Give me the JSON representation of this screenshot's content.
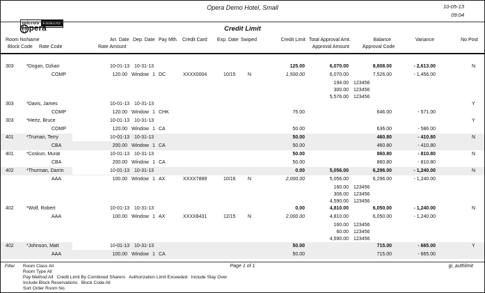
{
  "page": {
    "logo_micros": "micros",
    "logo_fidelio": "FIDELIO",
    "logo_opera": "pera",
    "title": "Opera Demo Hotel, Small",
    "subtitle": "Credit Limit",
    "date": "10-05-13",
    "time": "09:04"
  },
  "header": {
    "room_no": "Room No.",
    "name": "Name",
    "arr_date": "Arr. Date",
    "dep_date": "Dep. Date",
    "pay_mth": "Pay Mth.",
    "credit_card": "Credit Card",
    "exp_date": "Exp. Date",
    "swiped": "Swiped",
    "credit_limit": "Credit Limit",
    "total_approval": "Total Approval Amt.",
    "balance": "Balance",
    "variance": "Variance",
    "no_post": "No Post",
    "block_code": "Block Code",
    "rate_code": "Rate Code",
    "rate_amount": "Rate Amount",
    "approval_amount": "Approval Amount",
    "approval_code": "Approval Code"
  },
  "table_labels": {
    "window": "Window",
    "window_num": "1"
  },
  "guests": [
    {
      "room": "303",
      "name": "*Dogan, Ozkan",
      "arr": "10-01-13",
      "dep": "10-31-13",
      "shade_main": false,
      "shade_sub": false,
      "redact": false,
      "main": {
        "credit_limit": "125.00",
        "total_approval": "6,070.00",
        "balance": "8,808.00",
        "variance": "- 2,613.00",
        "no_post": "N"
      },
      "sub": {
        "rate_code": "COMP",
        "rate_amount": "120.00",
        "pay": "DC",
        "card": "XXXX0004",
        "exp": "10/15",
        "swiped": "N",
        "credit_limit": "1,500.00",
        "credit_limit_italic": true,
        "approval": "6,070.00",
        "balance": "7,526.00",
        "variance": "- 1,456.00"
      },
      "details": [
        {
          "amount": "194.00",
          "code": "123456"
        },
        {
          "amount": "300.00",
          "code": "123456"
        },
        {
          "amount": "5,576.00",
          "code": "123456"
        }
      ]
    },
    {
      "room": "303",
      "name": "*Davis, James",
      "arr": "10-01-13",
      "dep": "10-31-13",
      "shade_main": false,
      "shade_sub": false,
      "redact": false,
      "main": {
        "no_post": "Y"
      },
      "sub": {
        "rate_code": "COMP",
        "rate_amount": "120.00",
        "pay": "CHK",
        "credit_limit": "75.00",
        "credit_limit_italic": false,
        "balance": "646.00",
        "variance": "- 571.00"
      },
      "details": []
    },
    {
      "room": "303",
      "name": "*Hertz, Bruce",
      "arr": "10-01-13",
      "dep": "10-31-13",
      "shade_main": false,
      "shade_sub": false,
      "redact": false,
      "main": {
        "no_post": "Y"
      },
      "sub": {
        "rate_code": "COMP",
        "rate_amount": "120.00",
        "pay": "CA",
        "credit_limit": "50.00",
        "credit_limit_italic": false,
        "balance": "636.00",
        "variance": "- 586.00"
      },
      "details": []
    },
    {
      "room": "401",
      "name": "*Truman, Terry",
      "arr": "10-01-13",
      "dep": "10-31-13",
      "shade_main": true,
      "shade_sub": true,
      "redact": true,
      "main": {
        "credit_limit": "50.00",
        "balance": "460.80",
        "variance": "- 410.80",
        "no_post": "N"
      },
      "sub": {
        "rate_code": "CBA",
        "rate_amount": "200.00",
        "pay": "CA",
        "credit_limit": "50.00",
        "credit_limit_italic": false,
        "balance": "460.80",
        "variance": "- 410.80"
      },
      "details": []
    },
    {
      "room": "401",
      "name": "*Coskun, Murat",
      "arr": "10-01-13",
      "dep": "10-31-13",
      "shade_main": false,
      "shade_sub": false,
      "redact": false,
      "main": {
        "credit_limit": "50.00",
        "balance": "860.80",
        "variance": "- 810.80",
        "no_post": "N"
      },
      "sub": {
        "rate_code": "CBA",
        "rate_amount": "200.00",
        "pay": "CA",
        "credit_limit": "50.00",
        "credit_limit_italic": false,
        "balance": "860.80",
        "variance": "- 810.80"
      },
      "details": []
    },
    {
      "room": "402",
      "name": "*Thurman, Darrin",
      "arr": "10-01-13",
      "dep": "10-31-13",
      "shade_main": true,
      "shade_sub": false,
      "redact": true,
      "main": {
        "credit_limit": "0.00",
        "total_approval": "5,056.00",
        "balance": "6,296.00",
        "variance": "- 1,240.00",
        "no_post": "N"
      },
      "sub": {
        "rate_code": "AAA",
        "rate_amount": "100.00",
        "pay": "AX",
        "card": "XXXX7889",
        "exp": "10/16",
        "swiped": "N",
        "credit_limit": "2,000.00",
        "credit_limit_italic": true,
        "approval": "5,056.00",
        "balance": "6,296.00",
        "variance": "- 1,240.00"
      },
      "details": [
        {
          "amount": "160.00",
          "code": "123456"
        },
        {
          "amount": "306.00",
          "code": "123456"
        },
        {
          "amount": "4,590.00",
          "code": "123456"
        }
      ]
    },
    {
      "room": "402",
      "name": "*Wolf, Robert",
      "arr": "10-01-13",
      "dep": "10-31-13",
      "shade_main": false,
      "shade_sub": false,
      "redact": false,
      "main": {
        "credit_limit": "0.00",
        "total_approval": "4,810.00",
        "balance": "6,050.00",
        "variance": "- 1,240.00",
        "no_post": "N"
      },
      "sub": {
        "rate_code": "AAA",
        "rate_amount": "100.00",
        "pay": "AX",
        "card": "XXXX8431",
        "exp": "12/15",
        "swiped": "N",
        "credit_limit": "2,000.00",
        "credit_limit_italic": true,
        "approval": "4,810.00",
        "balance": "6,050.00",
        "variance": "- 1,240.00"
      },
      "details": [
        {
          "amount": "160.00",
          "code": "123456"
        },
        {
          "amount": "60.00",
          "code": "123456"
        },
        {
          "amount": "4,590.00",
          "code": "123456"
        }
      ]
    },
    {
      "room": "402",
      "name": "*Johnson, Matt",
      "arr": "10-01-13",
      "dep": "10-31-13",
      "shade_main": true,
      "shade_sub": true,
      "redact": true,
      "main": {
        "credit_limit": "50.00",
        "balance": "715.00",
        "variance": "- 665.00",
        "no_post": "Y"
      },
      "sub": {
        "rate_code": "AAA",
        "rate_amount": "100.00",
        "pay": "CA",
        "credit_limit": "50.00",
        "credit_limit_italic": false,
        "balance": "715.00",
        "variance": "- 665.00"
      },
      "details": []
    }
  ],
  "footer": {
    "filter_label": "Filter",
    "filters": [
      "Room Class All",
      "Room Type All",
      "Pay Method All   Credit Limit By Combined Sharers   Authorization Limit Exceeded   Include Stay Over",
      "Include Block Reservations   Block Code All",
      "Sort Order Room No."
    ],
    "page_number": "Page 1 of 1",
    "report_id": "gi_authlimit"
  }
}
